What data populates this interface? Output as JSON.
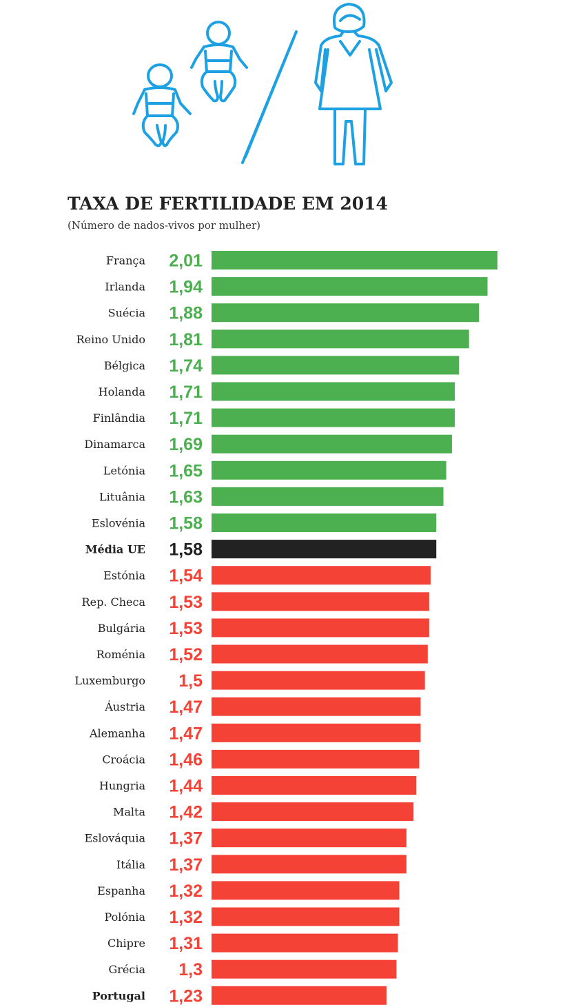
{
  "chart_data": {
    "type": "bar",
    "orientation": "horizontal",
    "title": "TAXA DE FERTILIDADE EM 2014",
    "subtitle": "(Número de nados-vivos por mulher)",
    "xlim": [
      0,
      2.01
    ],
    "grid": false,
    "categories": [
      "França",
      "Irlanda",
      "Suécia",
      "Reino Unido",
      "Bélgica",
      "Holanda",
      "Finlândia",
      "Dinamarca",
      "Letónia",
      "Lituânia",
      "Eslovénia",
      "Média UE",
      "Estónia",
      "Rep. Checa",
      "Bulgária",
      "Roménia",
      "Luxemburgo",
      "Áustria",
      "Alemanha",
      "Croácia",
      "Hungria",
      "Malta",
      "Eslováquia",
      "Itália",
      "Espanha",
      "Polónia",
      "Chipre",
      "Grécia",
      "Portugal"
    ],
    "values": [
      2.01,
      1.94,
      1.88,
      1.81,
      1.74,
      1.71,
      1.71,
      1.69,
      1.65,
      1.63,
      1.58,
      1.58,
      1.54,
      1.53,
      1.53,
      1.52,
      1.5,
      1.47,
      1.47,
      1.46,
      1.44,
      1.42,
      1.37,
      1.37,
      1.32,
      1.32,
      1.31,
      1.3,
      1.23
    ],
    "value_labels": [
      "2,01",
      "1,94",
      "1,88",
      "1,81",
      "1,74",
      "1,71",
      "1,71",
      "1,69",
      "1,65",
      "1,63",
      "1,58",
      "1,58",
      "1,54",
      "1,53",
      "1,53",
      "1,52",
      "1,5",
      "1,47",
      "1,47",
      "1,46",
      "1,44",
      "1,42",
      "1,37",
      "1,37",
      "1,32",
      "1,32",
      "1,31",
      "1,3",
      "1,23"
    ],
    "groups": [
      "above",
      "above",
      "above",
      "above",
      "above",
      "above",
      "above",
      "above",
      "above",
      "above",
      "above",
      "average",
      "below",
      "below",
      "below",
      "below",
      "below",
      "below",
      "below",
      "below",
      "below",
      "below",
      "below",
      "below",
      "below",
      "below",
      "below",
      "below",
      "below"
    ],
    "bold_categories": [
      "Média UE",
      "Portugal"
    ],
    "colors": {
      "above": "#4caf50",
      "average": "#222222",
      "below": "#f44336"
    }
  },
  "illustration": {
    "icons": [
      "baby-icon",
      "baby-icon",
      "slash-icon",
      "woman-icon"
    ],
    "stroke_color": "#1da1e2"
  }
}
